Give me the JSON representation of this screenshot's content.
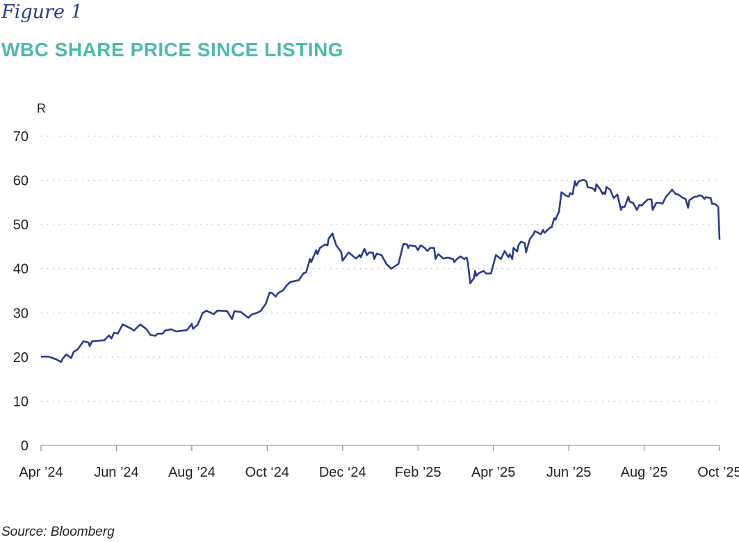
{
  "figure_label": "Figure 1",
  "source": "Source: Bloomberg",
  "chart_data": {
    "type": "line",
    "title": "WBC SHARE PRICE SINCE LISTING",
    "ylabel": "R",
    "xlabel": "",
    "ylim": [
      0,
      70
    ],
    "yticks": [
      "0",
      "10",
      "20",
      "30",
      "40",
      "50",
      "60",
      "70"
    ],
    "xticks": [
      "Apr ’24",
      "Jun ’24",
      "Aug ’24",
      "Oct ‘24",
      "Dec ‘24",
      "Feb ’25",
      "Apr ’25",
      "Jun ’25",
      "Aug ’25",
      "Oct ’25"
    ],
    "xtick_dates": [
      "2024-04-01",
      "2024-06-01",
      "2024-08-01",
      "2024-10-01",
      "2024-12-01",
      "2025-02-01",
      "2025-04-01",
      "2025-06-01",
      "2025-08-01",
      "2025-10-01"
    ],
    "xlim": [
      "2024-04-01",
      "2025-10-01"
    ],
    "grid": "horizontal dotted",
    "line_color": "#2b3a8c",
    "title_color": "#4dbaa7",
    "series": [
      {
        "points": [
          [
            "2024-04-01",
            20.1
          ],
          [
            "2024-04-07",
            20.1
          ],
          [
            "2024-04-13",
            19.5
          ],
          [
            "2024-04-17",
            18.9
          ],
          [
            "2024-04-18",
            19.5
          ],
          [
            "2024-04-21",
            20.6
          ],
          [
            "2024-04-25",
            19.8
          ],
          [
            "2024-04-27",
            21.2
          ],
          [
            "2024-04-30",
            21.7
          ],
          [
            "2024-05-05",
            23.6
          ],
          [
            "2024-05-09",
            23.3
          ],
          [
            "2024-05-10",
            22.5
          ],
          [
            "2024-05-12",
            23.6
          ],
          [
            "2024-05-22",
            23.8
          ],
          [
            "2024-05-26",
            24.9
          ],
          [
            "2024-05-28",
            24.2
          ],
          [
            "2024-05-30",
            25.5
          ],
          [
            "2024-06-02",
            25.3
          ],
          [
            "2024-06-06",
            27.4
          ],
          [
            "2024-06-13",
            26.4
          ],
          [
            "2024-06-15",
            26.0
          ],
          [
            "2024-06-20",
            27.4
          ],
          [
            "2024-06-25",
            26.3
          ],
          [
            "2024-06-28",
            25.0
          ],
          [
            "2024-07-02",
            24.8
          ],
          [
            "2024-07-04",
            25.3
          ],
          [
            "2024-07-08",
            25.3
          ],
          [
            "2024-07-10",
            26.0
          ],
          [
            "2024-07-15",
            26.3
          ],
          [
            "2024-07-19",
            25.8
          ],
          [
            "2024-07-28",
            26.1
          ],
          [
            "2024-08-01",
            27.5
          ],
          [
            "2024-08-02",
            26.4
          ],
          [
            "2024-08-06",
            27.4
          ],
          [
            "2024-08-10",
            30.0
          ],
          [
            "2024-08-13",
            30.5
          ],
          [
            "2024-08-19",
            29.7
          ],
          [
            "2024-08-22",
            30.5
          ],
          [
            "2024-08-30",
            30.4
          ],
          [
            "2024-09-03",
            28.6
          ],
          [
            "2024-09-05",
            30.4
          ],
          [
            "2024-09-10",
            30.2
          ],
          [
            "2024-09-16",
            28.9
          ],
          [
            "2024-09-19",
            29.7
          ],
          [
            "2024-09-23",
            30.0
          ],
          [
            "2024-09-26",
            30.5
          ],
          [
            "2024-09-30",
            32.1
          ],
          [
            "2024-10-03",
            34.6
          ],
          [
            "2024-10-05",
            34.5
          ],
          [
            "2024-10-08",
            33.7
          ],
          [
            "2024-10-10",
            34.5
          ],
          [
            "2024-10-14",
            35.1
          ],
          [
            "2024-10-17",
            36.2
          ],
          [
            "2024-10-20",
            37.0
          ],
          [
            "2024-10-27",
            37.4
          ],
          [
            "2024-10-31",
            39.0
          ],
          [
            "2024-11-02",
            39.2
          ],
          [
            "2024-11-05",
            42.2
          ],
          [
            "2024-11-06",
            41.5
          ],
          [
            "2024-11-10",
            44.2
          ],
          [
            "2024-11-11",
            43.3
          ],
          [
            "2024-11-13",
            44.7
          ],
          [
            "2024-11-17",
            45.5
          ],
          [
            "2024-11-19",
            45.3
          ],
          [
            "2024-11-20",
            46.9
          ],
          [
            "2024-11-23",
            48.0
          ],
          [
            "2024-11-24",
            47.0
          ],
          [
            "2024-11-26",
            45.3
          ],
          [
            "2024-11-30",
            43.7
          ],
          [
            "2024-12-01",
            41.8
          ],
          [
            "2024-12-06",
            43.7
          ],
          [
            "2024-12-12",
            42.3
          ],
          [
            "2024-12-15",
            43.1
          ],
          [
            "2024-12-16",
            42.6
          ],
          [
            "2024-12-19",
            44.5
          ],
          [
            "2024-12-21",
            43.1
          ],
          [
            "2024-12-23",
            43.7
          ],
          [
            "2024-12-26",
            43.6
          ],
          [
            "2024-12-27",
            42.2
          ],
          [
            "2024-12-29",
            43.4
          ],
          [
            "2025-01-02",
            43.1
          ],
          [
            "2025-01-06",
            41.1
          ],
          [
            "2025-01-10",
            40.0
          ],
          [
            "2025-01-16",
            41.1
          ],
          [
            "2025-01-20",
            45.6
          ],
          [
            "2025-01-23",
            45.5
          ],
          [
            "2025-01-24",
            44.7
          ],
          [
            "2025-01-25",
            45.3
          ],
          [
            "2025-01-30",
            45.1
          ],
          [
            "2025-02-01",
            44.2
          ],
          [
            "2025-02-03",
            45.3
          ],
          [
            "2025-02-06",
            44.7
          ],
          [
            "2025-02-08",
            44.0
          ],
          [
            "2025-02-10",
            44.7
          ],
          [
            "2025-02-13",
            44.7
          ],
          [
            "2025-02-14",
            42.2
          ],
          [
            "2025-02-16",
            43.3
          ],
          [
            "2025-02-20",
            42.3
          ],
          [
            "2025-02-23",
            42.5
          ],
          [
            "2025-02-27",
            42.2
          ],
          [
            "2025-02-28",
            41.5
          ],
          [
            "2025-03-02",
            42.2
          ],
          [
            "2025-03-05",
            42.8
          ],
          [
            "2025-03-08",
            42.2
          ],
          [
            "2025-03-10",
            42.5
          ],
          [
            "2025-03-11",
            41.5
          ],
          [
            "2025-03-13",
            36.7
          ],
          [
            "2025-03-16",
            37.9
          ],
          [
            "2025-03-17",
            39.5
          ],
          [
            "2025-03-18",
            38.4
          ],
          [
            "2025-03-20",
            39.0
          ],
          [
            "2025-03-24",
            39.5
          ],
          [
            "2025-03-26",
            38.9
          ],
          [
            "2025-03-30",
            38.9
          ],
          [
            "2025-04-03",
            43.1
          ],
          [
            "2025-04-07",
            42.2
          ],
          [
            "2025-04-10",
            44.0
          ],
          [
            "2025-04-13",
            42.6
          ],
          [
            "2025-04-14",
            43.3
          ],
          [
            "2025-04-16",
            42.2
          ],
          [
            "2025-04-17",
            44.7
          ],
          [
            "2025-04-20",
            43.9
          ],
          [
            "2025-04-21",
            45.3
          ],
          [
            "2025-04-23",
            46.1
          ],
          [
            "2025-04-26",
            45.8
          ],
          [
            "2025-04-27",
            43.7
          ],
          [
            "2025-04-30",
            46.7
          ],
          [
            "2025-05-03",
            47.8
          ],
          [
            "2025-05-04",
            48.5
          ],
          [
            "2025-05-06",
            48.3
          ],
          [
            "2025-05-09",
            47.8
          ],
          [
            "2025-05-11",
            48.8
          ],
          [
            "2025-05-12",
            48.1
          ],
          [
            "2025-05-17",
            49.4
          ],
          [
            "2025-05-18",
            49.4
          ],
          [
            "2025-05-20",
            51.4
          ],
          [
            "2025-05-21",
            51.1
          ],
          [
            "2025-05-24",
            52.9
          ],
          [
            "2025-05-26",
            57.3
          ],
          [
            "2025-05-30",
            56.5
          ],
          [
            "2025-06-01",
            56.3
          ],
          [
            "2025-06-02",
            57.1
          ],
          [
            "2025-06-04",
            56.8
          ],
          [
            "2025-06-06",
            59.8
          ],
          [
            "2025-06-07",
            58.8
          ],
          [
            "2025-06-09",
            59.8
          ],
          [
            "2025-06-13",
            60.1
          ],
          [
            "2025-06-15",
            59.8
          ],
          [
            "2025-06-16",
            58.5
          ],
          [
            "2025-06-20",
            58.2
          ],
          [
            "2025-06-22",
            57.6
          ],
          [
            "2025-06-23",
            59.1
          ],
          [
            "2025-06-26",
            58.0
          ],
          [
            "2025-06-28",
            56.9
          ],
          [
            "2025-06-29",
            57.3
          ],
          [
            "2025-06-30",
            56.9
          ],
          [
            "2025-07-01",
            58.5
          ],
          [
            "2025-07-04",
            57.9
          ],
          [
            "2025-07-05",
            57.3
          ],
          [
            "2025-07-07",
            56.0
          ],
          [
            "2025-07-10",
            56.8
          ],
          [
            "2025-07-13",
            53.3
          ],
          [
            "2025-07-14",
            54.0
          ],
          [
            "2025-07-16",
            54.0
          ],
          [
            "2025-07-19",
            56.3
          ],
          [
            "2025-07-20",
            55.2
          ],
          [
            "2025-07-23",
            54.9
          ],
          [
            "2025-07-26",
            53.3
          ],
          [
            "2025-07-28",
            54.4
          ],
          [
            "2025-07-30",
            54.3
          ],
          [
            "2025-08-01",
            54.9
          ],
          [
            "2025-08-04",
            55.7
          ],
          [
            "2025-08-07",
            55.7
          ],
          [
            "2025-08-08",
            53.3
          ],
          [
            "2025-08-11",
            54.9
          ],
          [
            "2025-08-14",
            54.9
          ],
          [
            "2025-08-16",
            54.7
          ],
          [
            "2025-08-19",
            56.3
          ],
          [
            "2025-08-21",
            56.9
          ],
          [
            "2025-08-24",
            57.9
          ],
          [
            "2025-08-27",
            56.9
          ],
          [
            "2025-08-29",
            56.8
          ],
          [
            "2025-09-02",
            56.0
          ],
          [
            "2025-09-04",
            55.8
          ],
          [
            "2025-09-06",
            53.8
          ],
          [
            "2025-09-07",
            55.5
          ],
          [
            "2025-09-11",
            56.3
          ],
          [
            "2025-09-13",
            56.3
          ],
          [
            "2025-09-15",
            56.6
          ],
          [
            "2025-09-17",
            56.5
          ],
          [
            "2025-09-19",
            55.8
          ],
          [
            "2025-09-20",
            56.2
          ],
          [
            "2025-09-24",
            56.0
          ],
          [
            "2025-09-25",
            54.7
          ],
          [
            "2025-09-27",
            54.7
          ],
          [
            "2025-09-30",
            54.0
          ],
          [
            "2025-10-01",
            46.6
          ]
        ]
      }
    ]
  }
}
